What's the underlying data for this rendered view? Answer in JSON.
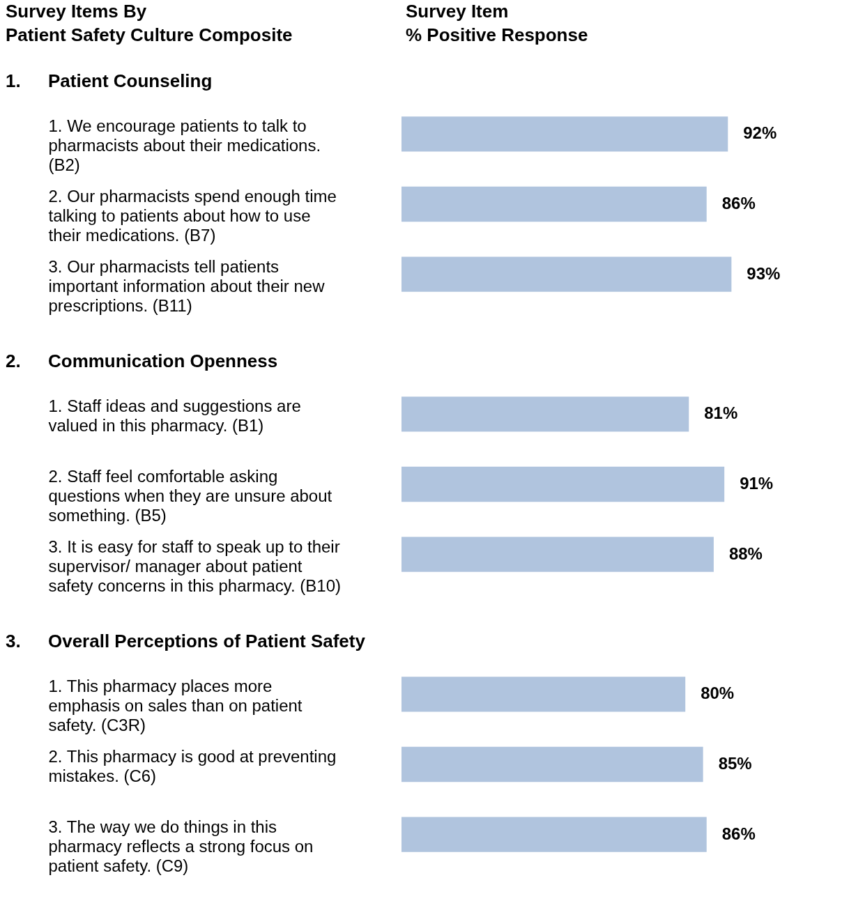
{
  "chart_data": [
    {
      "type": "bar",
      "orientation": "horizontal",
      "ylabel": "Survey Items By\nPatient Safety Culture Composite",
      "xlabel": "Survey Item\n% Positive Response",
      "title": "Patient Counseling",
      "annotations": [
        "1."
      ],
      "color": "#b0c4de",
      "categories": [
        "1. We encourage patients to talk to\npharmacists about their medications.\n(B2)",
        "2. Our pharmacists spend enough time\ntalking to patients about how to use\ntheir medications. (B7)",
        "3. Our pharmacists tell patients\nimportant information about their new\nprescriptions. (B11)"
      ],
      "values": [
        92,
        86,
        93
      ],
      "value_labels": [
        "92%",
        "86%",
        "93%"
      ]
    },
    {
      "type": "bar",
      "orientation": "horizontal",
      "title": "Communication Openness",
      "annotations": [
        "2."
      ],
      "color": "#b0c4de",
      "categories": [
        "1. Staff ideas and suggestions are\nvalued in this pharmacy. (B1)",
        "2. Staff feel comfortable asking\nquestions when they are unsure about\nsomething. (B5)",
        "3. It is easy for staff to speak up to their\nsupervisor/ manager about patient\nsafety concerns in this pharmacy. (B10)"
      ],
      "values": [
        81,
        91,
        88
      ],
      "value_labels": [
        "81%",
        "91%",
        "88%"
      ]
    },
    {
      "type": "bar",
      "orientation": "horizontal",
      "title": "Overall Perceptions of Patient Safety",
      "annotations": [
        "3."
      ],
      "color": "#b0c4de",
      "categories": [
        "1. This pharmacy places more\nemphasis on sales than on patient\nsafety. (C3R)",
        "2. This pharmacy is good at preventing\nmistakes. (C6)",
        "3. The way we do things in this\npharmacy reflects a strong focus on\npatient safety. (C9)"
      ],
      "values": [
        80,
        85,
        86
      ],
      "value_labels": [
        "80%",
        "85%",
        "86%"
      ]
    }
  ]
}
